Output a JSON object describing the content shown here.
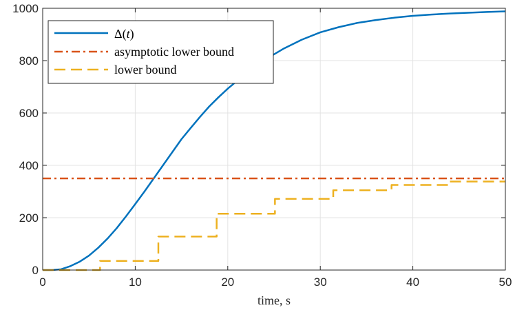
{
  "chart_data": {
    "type": "line",
    "xlabel": "time, s",
    "ylabel": "",
    "title": "",
    "xlim": [
      0,
      50
    ],
    "ylim": [
      0,
      1000
    ],
    "xticks": [
      0,
      10,
      20,
      30,
      40,
      50
    ],
    "yticks": [
      0,
      200,
      400,
      600,
      800,
      1000
    ],
    "grid": true,
    "legend_position": "top-left",
    "series": [
      {
        "name": "Δ(t)",
        "style": "solid",
        "color": "#0072BD",
        "x": [
          0,
          1,
          2,
          3,
          4,
          5,
          6,
          7,
          8,
          9,
          10,
          11,
          12,
          13,
          14,
          15,
          16,
          17,
          18,
          19,
          20,
          22,
          24,
          26,
          28,
          30,
          32,
          34,
          36,
          38,
          40,
          42,
          44,
          46,
          48,
          50
        ],
        "y": [
          0,
          0,
          3,
          15,
          32,
          55,
          85,
          120,
          160,
          205,
          252,
          300,
          350,
          400,
          450,
          500,
          543,
          585,
          625,
          660,
          693,
          752,
          803,
          845,
          880,
          908,
          928,
          944,
          955,
          964,
          971,
          976,
          980,
          983,
          986,
          988
        ]
      },
      {
        "name": "asymptotic lower bound",
        "style": "dashdot",
        "color": "#D95319",
        "x": [
          0,
          50
        ],
        "y": [
          350,
          350
        ]
      },
      {
        "name": "lower bound",
        "style": "dashed-step",
        "color": "#EDB120",
        "x": [
          0,
          6.2,
          12.5,
          18.8,
          25.1,
          31.4,
          37.7,
          44,
          50
        ],
        "y": [
          0,
          35,
          128,
          215,
          272,
          305,
          325,
          338,
          338
        ]
      }
    ],
    "legend_entries": [
      {
        "label_main": "Δ(",
        "label_var": "t",
        "label_close": ")"
      },
      {
        "label": "asymptotic lower bound"
      },
      {
        "label": "lower bound"
      }
    ]
  }
}
